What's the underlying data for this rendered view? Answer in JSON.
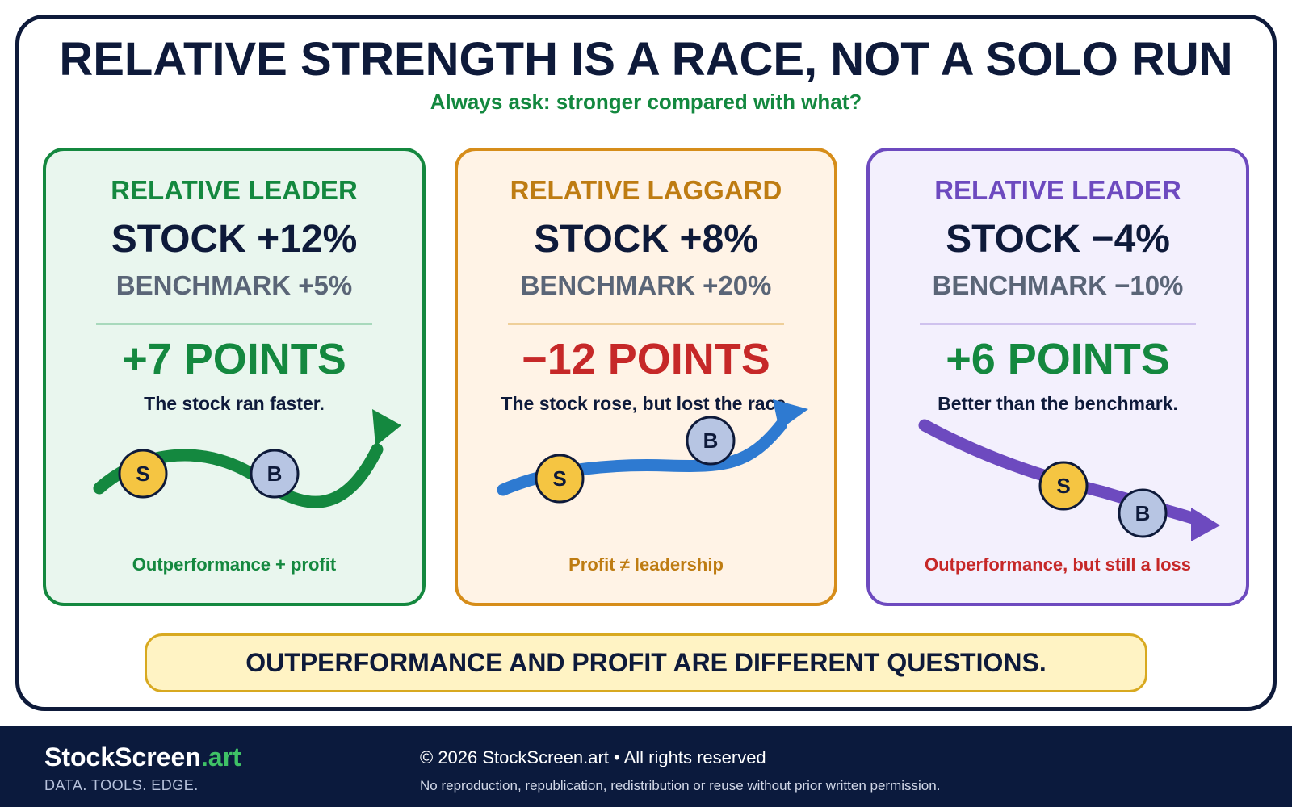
{
  "header": {
    "title": "RELATIVE STRENGTH IS A RACE, NOT A SOLO RUN",
    "subtitle": "Always ask: stronger compared with what?"
  },
  "cards": [
    {
      "label": "RELATIVE LEADER",
      "stock": "STOCK +12%",
      "benchmark": "BENCHMARK +5%",
      "points": "+7 POINTS",
      "note": "The stock ran faster.",
      "caption": "Outperformance + profit",
      "stock_return_pct": 12,
      "benchmark_return_pct": 5,
      "difference_points": 7,
      "stock_marker": "S",
      "benchmark_marker": "B",
      "accent_color": "#14883f"
    },
    {
      "label": "RELATIVE LAGGARD",
      "stock": "STOCK +8%",
      "benchmark": "BENCHMARK +20%",
      "points": "−12 POINTS",
      "note": "The stock rose, but lost the race.",
      "caption": "Profit ≠ leadership",
      "stock_return_pct": 8,
      "benchmark_return_pct": 20,
      "difference_points": -12,
      "stock_marker": "S",
      "benchmark_marker": "B",
      "accent_color": "#2e7ad1"
    },
    {
      "label": "RELATIVE LEADER",
      "stock": "STOCK −4%",
      "benchmark": "BENCHMARK −10%",
      "points": "+6 POINTS",
      "note": "Better than the benchmark.",
      "caption": "Outperformance, but still a loss",
      "stock_return_pct": -4,
      "benchmark_return_pct": -10,
      "difference_points": 6,
      "stock_marker": "S",
      "benchmark_marker": "B",
      "accent_color": "#6d4abf"
    }
  ],
  "banner": {
    "text": "OUTPERFORMANCE AND PROFIT ARE DIFFERENT QUESTIONS."
  },
  "footer": {
    "brand_name": "StockScreen",
    "brand_tld": ".art",
    "tagline": "DATA. TOOLS. EDGE.",
    "copyright": "© 2026 StockScreen.art • All rights reserved",
    "notice": "No reproduction, republication, redistribution or reuse without prior written permission."
  },
  "colors": {
    "navy": "#0e1a3a",
    "green": "#14883f",
    "orange": "#d68d1a",
    "purple": "#6d4abf",
    "red": "#c62828",
    "stock_marker": "#f5c542",
    "benchmark_marker": "#b7c5e3"
  }
}
